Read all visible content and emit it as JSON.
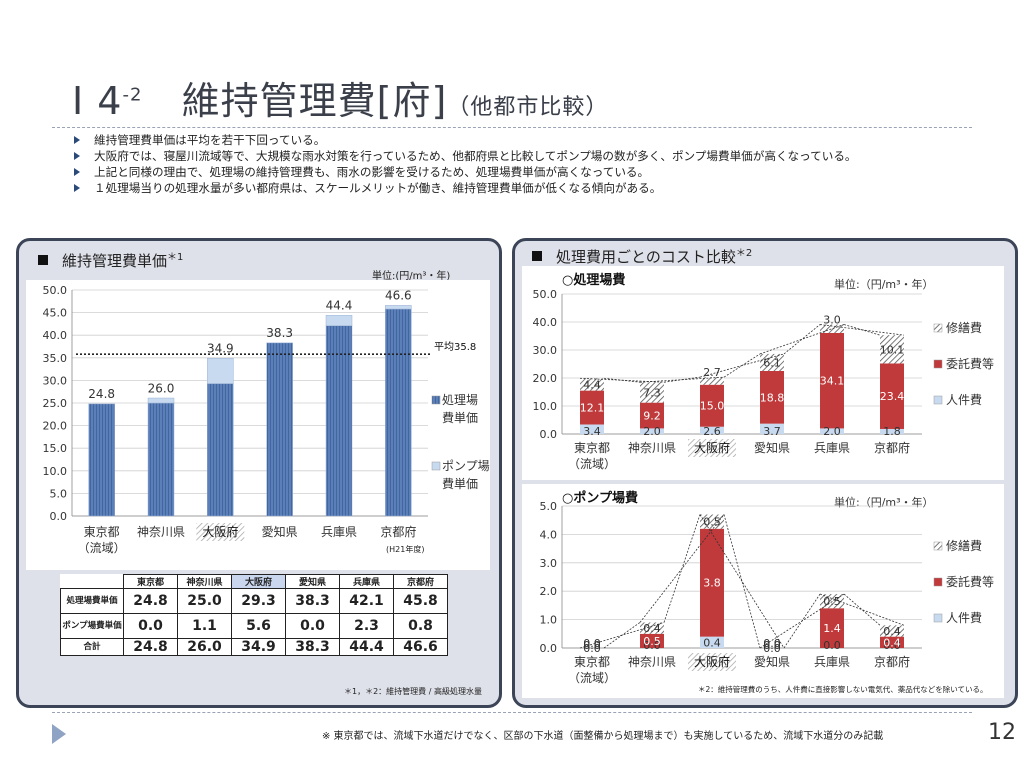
{
  "slide": {
    "title_num": "Ⅰ 4",
    "title_sup": "-2",
    "title_main": "維持管理費[府]",
    "title_sub": "（他都市比較）",
    "page_number": "12",
    "footnote": "※ 東京都では、流域下水道だけでなく、区部の下水道（面整備から処理場まで）も実施しているため、流域下水道分のみ記載"
  },
  "bullets": [
    "維持管理費単価は平均を若干下回っている。",
    "大阪府では、寝屋川流域等で、大規模な雨水対策を行っているため、他都府県と比較してポンプ場の数が多く、ポンプ場費単価が高くなっている。",
    "上記と同様の理由で、処理場の維持管理費も、雨水の影響を受けるため、処理場費単価が高くなっている。",
    "１処理場当りの処理水量が多い都府県は、スケールメリットが働き、維持管理費単価が低くなる傾向がある。"
  ],
  "left_panel": {
    "title": "維持管理費単価",
    "title_mark": "＊1",
    "unit": "単位:(円/m³・年)",
    "average_label": "平均35.8",
    "year_note": "(H21年度)",
    "source_note": "＊1，＊2：維持管理費 / 高級処理水量",
    "table": {
      "headers": [
        "東京都",
        "神奈川県",
        "大阪府",
        "愛知県",
        "兵庫県",
        "京都府"
      ],
      "rows": [
        {
          "label": "処理場費単価",
          "values": [
            "24.8",
            "25.0",
            "29.3",
            "38.3",
            "42.1",
            "45.8"
          ]
        },
        {
          "label": "ポンプ場費単価",
          "values": [
            "0.0",
            "1.1",
            "5.6",
            "0.0",
            "2.3",
            "0.8"
          ]
        },
        {
          "label": "合計",
          "values": [
            "24.8",
            "26.0",
            "34.9",
            "38.3",
            "44.4",
            "46.6"
          ]
        }
      ]
    }
  },
  "right_panel": {
    "title": "処理費用ごとのコスト比較",
    "title_mark": "＊2",
    "note": "＊2：維持管理費のうち、人件費に直接影響しない電気代、薬品代などを除いている。"
  },
  "chart_data": [
    {
      "type": "bar",
      "title": "維持管理費単価",
      "stacked": true,
      "categories": [
        "東京都\n（流域）",
        "神奈川県",
        "大阪府",
        "愛知県",
        "兵庫県",
        "京都府"
      ],
      "series": [
        {
          "name": "処理場費単価",
          "values": [
            24.8,
            25.0,
            29.3,
            38.3,
            42.1,
            45.8
          ],
          "color": "#5b7fb8"
        },
        {
          "name": "ポンプ場費単価",
          "values": [
            0.0,
            1.1,
            5.6,
            0.0,
            2.3,
            0.8
          ],
          "color": "#c8daf0"
        }
      ],
      "totals": [
        24.8,
        26.0,
        34.9,
        38.3,
        44.4,
        46.6
      ],
      "average": 35.8,
      "yticks": [
        "0.0",
        "5.0",
        "10.0",
        "15.0",
        "20.0",
        "25.0",
        "30.0",
        "35.0",
        "40.0",
        "45.0",
        "50.0"
      ],
      "ylim": [
        0,
        50
      ],
      "legend_position": "right"
    },
    {
      "type": "bar",
      "title": "○処理場費",
      "unit": "単位:（円/m³・年）",
      "stacked": true,
      "categories": [
        "東京都\n（流域）",
        "神奈川県",
        "大阪府",
        "愛知県",
        "兵庫県",
        "京都府"
      ],
      "series": [
        {
          "name": "人件費",
          "values": [
            3.4,
            2.0,
            2.6,
            3.7,
            2.0,
            1.8
          ],
          "color": "#c8daf0"
        },
        {
          "name": "委託費等",
          "values": [
            12.1,
            9.2,
            15.0,
            18.8,
            34.1,
            23.4
          ],
          "color": "#c0393b"
        },
        {
          "name": "修繕費",
          "values": [
            4.4,
            7.3,
            2.7,
            6.1,
            3.0,
            10.1
          ],
          "color": "#bfbfbf"
        }
      ],
      "yticks": [
        "0.0",
        "10.0",
        "20.0",
        "30.0",
        "40.0",
        "50.0"
      ],
      "ylim": [
        0,
        50
      ],
      "legend_position": "right"
    },
    {
      "type": "bar",
      "title": "○ポンプ場費",
      "unit": "単位:（円/m³・年）",
      "stacked": true,
      "categories": [
        "東京都\n（流域）",
        "神奈川県",
        "大阪府",
        "愛知県",
        "兵庫県",
        "京都府"
      ],
      "series": [
        {
          "name": "人件費",
          "values": [
            0.0,
            0.0,
            0.4,
            0.0,
            0.0,
            0.0
          ],
          "color": "#c8daf0"
        },
        {
          "name": "委託費等",
          "values": [
            0.0,
            0.5,
            3.8,
            0.0,
            1.4,
            0.4
          ],
          "color": "#c0393b"
        },
        {
          "name": "修繕費",
          "values": [
            0.0,
            0.4,
            0.5,
            0.0,
            0.5,
            0.4
          ],
          "color": "#bfbfbf"
        }
      ],
      "yticks": [
        "0.0",
        "1.0",
        "2.0",
        "3.0",
        "4.0",
        "5.0"
      ],
      "ylim": [
        0,
        5
      ],
      "legend_position": "right"
    }
  ]
}
